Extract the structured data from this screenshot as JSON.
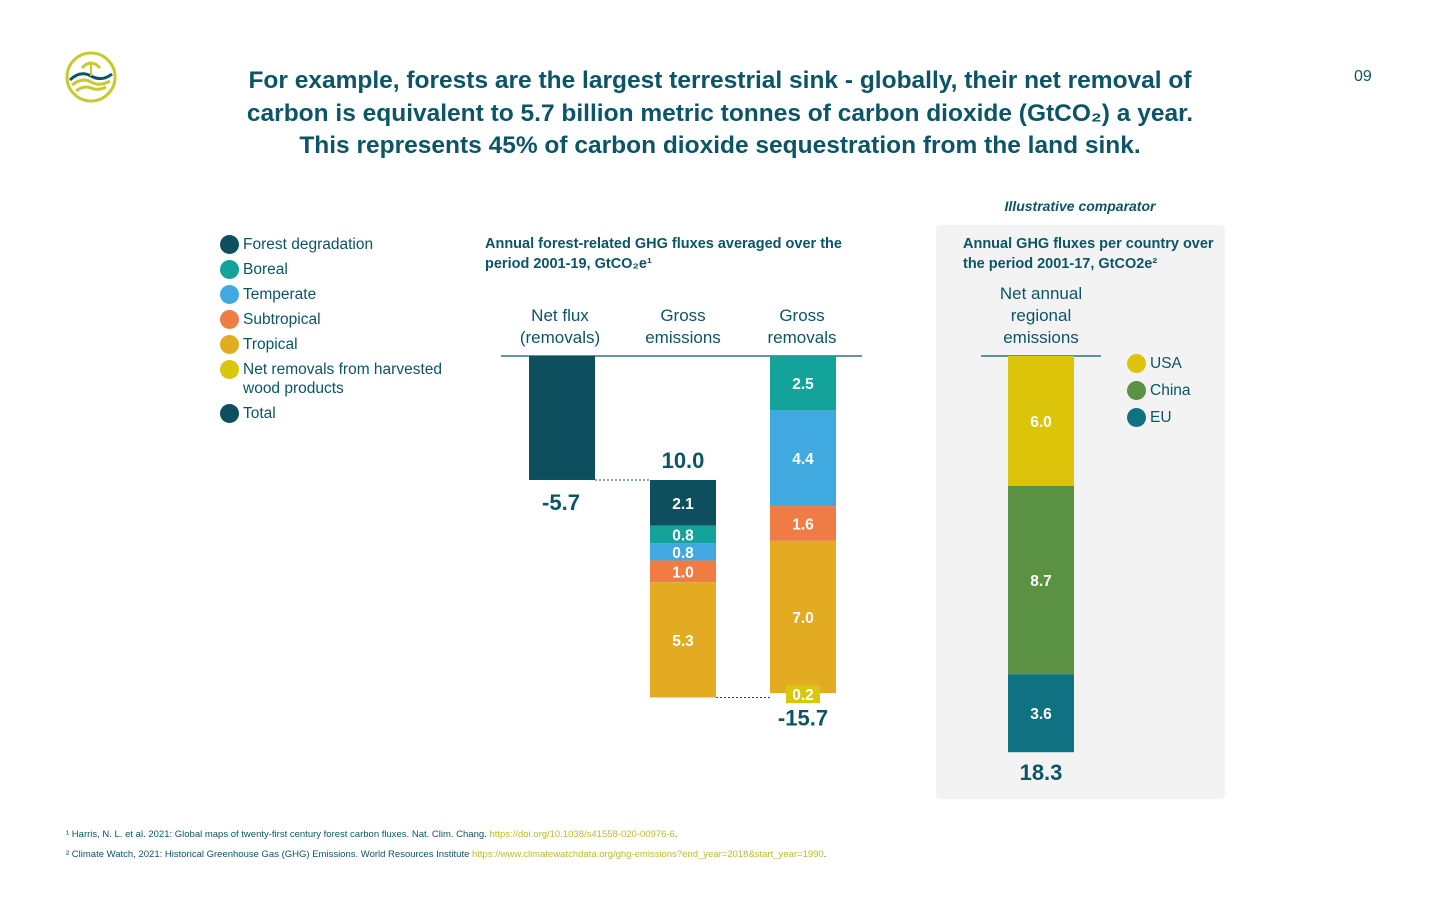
{
  "page_number": "09",
  "headline": [
    "For example, forests are the largest terrestrial sink - globally, their net removal of",
    "carbon is equivalent to 5.7 billion metric tonnes of carbon dioxide (GtCO₂) a year.",
    "This represents 45% of carbon dioxide sequestration from the land sink."
  ],
  "logo_icon": "forest-wave-logo-icon",
  "colors": {
    "navy": "#0b5566",
    "forest_degradation": "#0d4f5f",
    "boreal": "#14a39a",
    "temperate": "#3fa9e0",
    "subtropical": "#ef7b45",
    "tropical": "#e2ab22",
    "hwp": "#d9c60e",
    "total": "#0d4f5f",
    "usa": "#dcc40a",
    "china": "#5a9142",
    "eu": "#0f7283",
    "link": "#b9bd2b"
  },
  "legend": [
    {
      "label": "Forest degradation",
      "color": "#0d4f5f"
    },
    {
      "label": "Boreal",
      "color": "#14a39a"
    },
    {
      "label": "Temperate",
      "color": "#3fa9e0"
    },
    {
      "label": "Subtropical",
      "color": "#ef7b45"
    },
    {
      "label": "Tropical",
      "color": "#e2ab22"
    },
    {
      "label": "Net removals from harvested wood products",
      "color": "#d9c60e"
    },
    {
      "label": "Total",
      "color": "#0d4f5f"
    }
  ],
  "chart_data": [
    {
      "type": "bar",
      "title": "Annual forest-related GHG fluxes averaged over the period 2001-19, GtCO₂e¹",
      "categories": [
        "Net flux (removals)",
        "Gross emissions",
        "Gross removals"
      ],
      "column_labels": [
        [
          "Net flux",
          "(removals)"
        ],
        [
          "Gross",
          "emissions"
        ],
        [
          "Gross",
          "removals"
        ]
      ],
      "net_flux": {
        "value": -5.7,
        "label": "-5.7"
      },
      "gross_emissions": {
        "total": 10.0,
        "total_label": "10.0",
        "segments": [
          {
            "name": "Forest degradation",
            "value": 2.1,
            "label": "2.1"
          },
          {
            "name": "Boreal",
            "value": 0.8,
            "label": "0.8"
          },
          {
            "name": "Temperate",
            "value": 0.8,
            "label": "0.8"
          },
          {
            "name": "Subtropical",
            "value": 1.0,
            "label": "1.0"
          },
          {
            "name": "Tropical",
            "value": 5.3,
            "label": "5.3"
          }
        ]
      },
      "gross_removals": {
        "total": -15.7,
        "total_label": "-15.7",
        "segments": [
          {
            "name": "Boreal",
            "value": 2.5,
            "label": "2.5"
          },
          {
            "name": "Temperate",
            "value": 4.4,
            "label": "4.4"
          },
          {
            "name": "Subtropical",
            "value": 1.6,
            "label": "1.6"
          },
          {
            "name": "Tropical",
            "value": 7.0,
            "label": "7.0"
          },
          {
            "name": "Net removals from harvested wood products",
            "value": 0.2,
            "label": "0.2"
          }
        ]
      }
    },
    {
      "type": "bar",
      "title": "Annual GHG fluxes per country over the period 2001-17, GtCO2e²",
      "comparator_label": "Illustrative comparator",
      "column_label": [
        "Net annual",
        "regional",
        "emissions"
      ],
      "total": 18.3,
      "total_label": "18.3",
      "segments": [
        {
          "name": "USA",
          "value": 6.0,
          "label": "6.0"
        },
        {
          "name": "China",
          "value": 8.7,
          "label": "8.7"
        },
        {
          "name": "EU",
          "value": 3.6,
          "label": "3.6"
        }
      ],
      "legend": [
        {
          "label": "USA",
          "color": "#dcc40a"
        },
        {
          "label": "China",
          "color": "#5a9142"
        },
        {
          "label": "EU",
          "color": "#0f7283"
        }
      ]
    }
  ],
  "footnotes": [
    {
      "text": "¹ Harris, N. L. et al. 2021: Global maps of twenty-first century forest carbon fluxes. Nat. Clim. Chang. ",
      "link": "https://doi.org/10.1038/s41558-020-00976-6",
      "after": "."
    },
    {
      "text": "² Climate Watch, 2021: Historical Greenhouse Gas (GHG) Emissions. World Resources Institute ",
      "link": "https://www.climatewatchdata.org/ghg-emissions?end_year=2018&start_year=1990",
      "after": "."
    }
  ]
}
